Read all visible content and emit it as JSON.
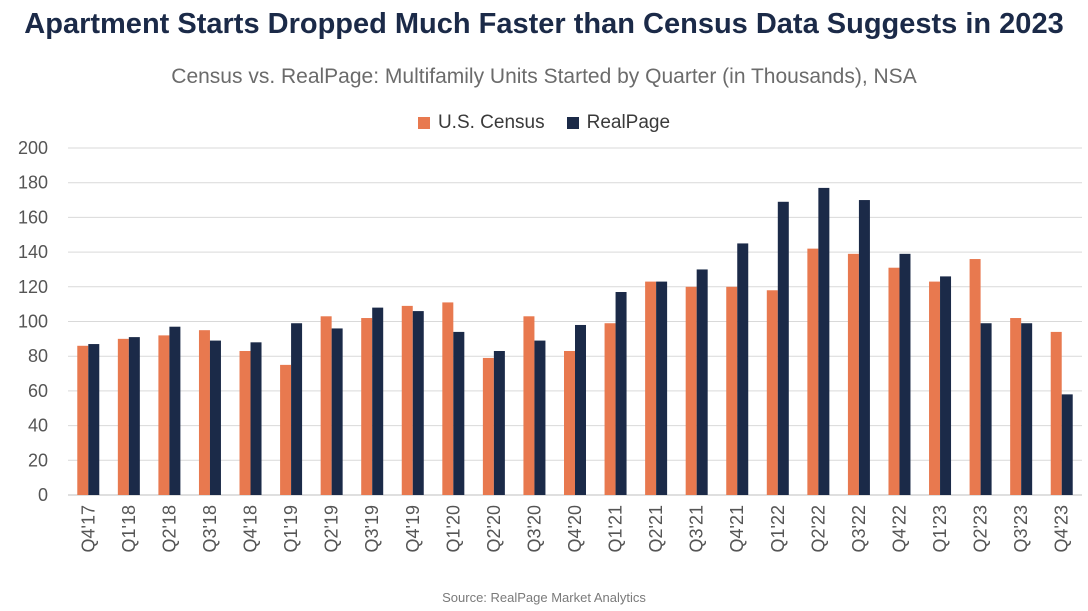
{
  "header": {
    "title": "Apartment Starts Dropped Much Faster than Census Data Suggests in 2023",
    "subtitle": "Census vs. RealPage: Multifamily Units Started by Quarter (in Thousands), NSA"
  },
  "footer": {
    "source": "Source: RealPage Market Analytics"
  },
  "colors": {
    "census": "#e8794f",
    "realpage": "#1b2a48",
    "grid": "#d9d9d9"
  },
  "chart_data": {
    "type": "bar",
    "title": "Census vs. RealPage: Multifamily Units Started by Quarter (in Thousands), NSA",
    "xlabel": "",
    "ylabel": "",
    "ylim": [
      0,
      200
    ],
    "yticks": [
      0,
      20,
      40,
      60,
      80,
      100,
      120,
      140,
      160,
      180,
      200
    ],
    "grid": true,
    "legend_position": "top-center",
    "categories": [
      "Q4'17",
      "Q1'18",
      "Q2'18",
      "Q3'18",
      "Q4'18",
      "Q1'19",
      "Q2'19",
      "Q3'19",
      "Q4'19",
      "Q1'20",
      "Q2'20",
      "Q3'20",
      "Q4'20",
      "Q1'21",
      "Q2'21",
      "Q3'21",
      "Q4'21",
      "Q1'22",
      "Q2'22",
      "Q3'22",
      "Q4'22",
      "Q1'23",
      "Q2'23",
      "Q3'23",
      "Q4'23"
    ],
    "series": [
      {
        "name": "U.S. Census",
        "values": [
          86,
          90,
          92,
          95,
          83,
          75,
          103,
          102,
          109,
          111,
          79,
          103,
          83,
          99,
          123,
          120,
          120,
          118,
          142,
          139,
          131,
          123,
          136,
          102,
          94
        ]
      },
      {
        "name": "RealPage",
        "values": [
          87,
          91,
          97,
          89,
          88,
          99,
          96,
          108,
          106,
          94,
          83,
          89,
          98,
          117,
          123,
          130,
          145,
          169,
          177,
          170,
          139,
          126,
          99,
          99,
          58
        ]
      }
    ]
  }
}
